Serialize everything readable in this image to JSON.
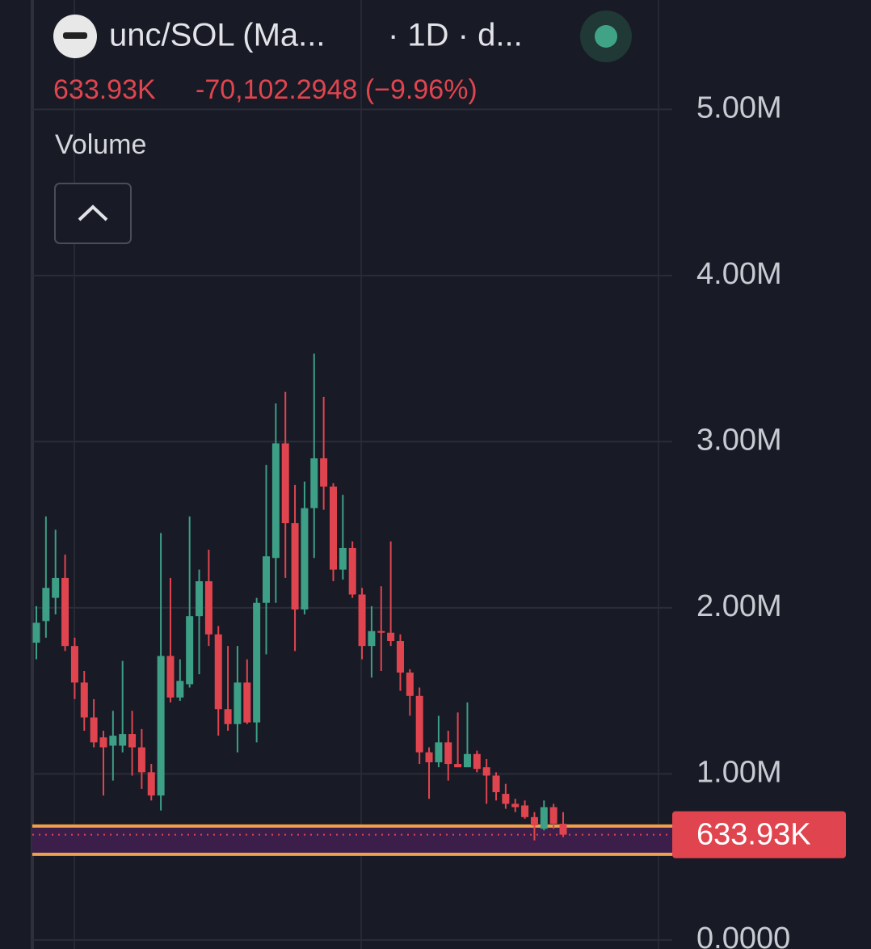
{
  "chart_data": {
    "type": "candlestick",
    "title": "unc/SOL (Ma...",
    "interval": "· 1D · d...",
    "change_label": "-70,102.2948 (−9.96%)",
    "indicator": "Volume",
    "last": {
      "value": 0.63393,
      "label": "633.93K"
    },
    "up_color": "#3d9f86",
    "down_color": "#e0454f",
    "band": {
      "values": [
        0.686,
        0.516
      ],
      "color": "#f0a04b",
      "fill": "#3b1e4a"
    },
    "ylim": [
      -0.054,
      5.659
    ],
    "yticks": [
      {
        "value": 0,
        "label": "0.0000"
      },
      {
        "value": 1,
        "label": "1.00M"
      },
      {
        "value": 2,
        "label": "2.00M"
      },
      {
        "value": 3,
        "label": "3.00M"
      },
      {
        "value": 4,
        "label": "4.00M"
      },
      {
        "value": 5,
        "label": "5.00M"
      }
    ],
    "grid": true,
    "open": [
      1.79,
      1.92,
      2.06,
      2.18,
      1.77,
      1.55,
      1.34,
      1.22,
      1.17,
      1.17,
      1.24,
      1.16,
      1.01,
      0.87,
      1.71,
      1.46,
      1.54,
      1.95,
      2.16,
      1.84,
      1.39,
      1.3,
      1.55,
      1.31,
      2.03,
      2.3,
      2.99,
      2.51,
      1.99,
      2.6,
      2.9,
      2.73,
      2.23,
      2.36,
      2.08,
      1.77,
      1.86,
      1.85,
      1.8,
      1.61,
      1.47,
      1.13,
      1.07,
      1.19,
      1.06,
      1.04,
      1.12,
      1.04,
      0.99,
      0.88,
      0.82,
      0.81,
      0.74,
      0.67,
      0.8,
      0.7
    ],
    "high": [
      2.01,
      2.55,
      2.47,
      2.32,
      1.82,
      1.62,
      1.45,
      1.26,
      1.38,
      1.68,
      1.38,
      1.27,
      1.06,
      2.45,
      2.18,
      1.69,
      2.55,
      2.23,
      2.35,
      1.89,
      1.77,
      1.77,
      1.69,
      2.06,
      2.86,
      3.23,
      3.3,
      2.74,
      2.76,
      3.53,
      3.27,
      2.75,
      2.68,
      2.4,
      2.12,
      2.01,
      2.13,
      2.4,
      1.84,
      1.63,
      1.52,
      1.16,
      1.35,
      1.26,
      1.37,
      1.43,
      1.14,
      1.09,
      1.01,
      0.94,
      0.85,
      0.84,
      0.77,
      0.84,
      0.82,
      0.77
    ],
    "low": [
      1.69,
      1.82,
      1.96,
      1.74,
      1.45,
      1.26,
      1.16,
      0.87,
      0.96,
      1.13,
      0.99,
      0.91,
      0.84,
      0.78,
      1.43,
      1.44,
      1.52,
      1.6,
      1.77,
      1.23,
      1.26,
      1.13,
      1.3,
      1.19,
      1.72,
      2.03,
      2.18,
      1.74,
      1.96,
      2.3,
      2.59,
      2.16,
      2.17,
      2.06,
      1.69,
      1.58,
      1.62,
      1.77,
      1.5,
      1.35,
      1.06,
      0.85,
      1.04,
      0.96,
      1.04,
      1.04,
      1.01,
      0.82,
      0.84,
      0.79,
      0.77,
      0.73,
      0.6,
      0.66,
      0.67,
      0.62
    ],
    "close": [
      1.91,
      2.12,
      2.18,
      1.77,
      1.55,
      1.34,
      1.19,
      1.16,
      1.23,
      1.24,
      1.16,
      1.01,
      0.87,
      1.71,
      1.46,
      1.56,
      1.95,
      2.16,
      1.84,
      1.39,
      1.3,
      1.55,
      1.31,
      2.03,
      2.31,
      2.99,
      2.51,
      1.99,
      2.6,
      2.9,
      2.73,
      2.23,
      2.36,
      2.08,
      1.77,
      1.86,
      1.85,
      1.8,
      1.61,
      1.47,
      1.13,
      1.07,
      1.19,
      1.06,
      1.04,
      1.12,
      1.03,
      0.99,
      0.89,
      0.82,
      0.8,
      0.74,
      0.69,
      0.8,
      0.7,
      0.63393
    ]
  }
}
